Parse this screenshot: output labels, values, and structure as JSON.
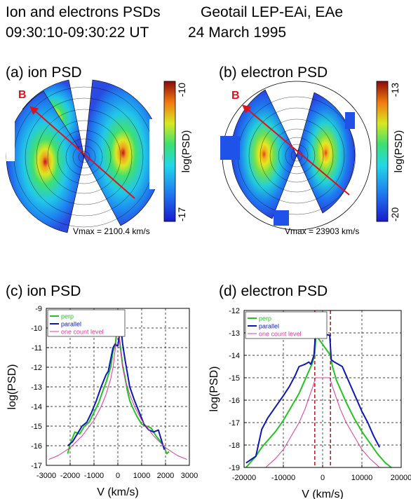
{
  "header": {
    "line1_left": "Ion and electrons PSDs",
    "line1_right": "Geotail LEP-EAi, EAe",
    "line2_left": "09:30:10-09:30:22 UT",
    "line2_right": "24 March 1995"
  },
  "panels": {
    "a": {
      "title": "(a) ion PSD",
      "b_label": "B",
      "vmax": "Vmax = 2100.4 km/s",
      "colorbar_top": "-10",
      "colorbar_bottom": "-17",
      "colorbar_label": "log(PSD)"
    },
    "b": {
      "title": "(b) electron PSD",
      "b_label": "B",
      "vmax": "Vmax = 23903 km/s",
      "colorbar_top": "-13",
      "colorbar_bottom": "-20",
      "colorbar_label": "log(PSD)"
    },
    "c": {
      "title": "(c) ion PSD"
    },
    "d": {
      "title": "(d) electron PSD"
    }
  },
  "colors": {
    "perp": "#22c422",
    "parallel": "#0b18b5",
    "one_count": "#e0389a",
    "b_arrow": "#e0101a",
    "dashed_marker": "#e0101a"
  },
  "chart_data": [
    {
      "id": "c",
      "type": "line",
      "title": "(c) ion PSD",
      "xlabel": "V (km/s)",
      "ylabel": "log(PSD)",
      "xlim": [
        -3000,
        3000
      ],
      "ylim": [
        -17,
        -9
      ],
      "xticks": [
        -3000,
        -2000,
        -1000,
        0,
        1000,
        2000,
        3000
      ],
      "yticks": [
        -17,
        -16,
        -15,
        -14,
        -13,
        -12,
        -11,
        -10,
        -9
      ],
      "grid": true,
      "legend_position": "top-left",
      "series": [
        {
          "name": "perp",
          "color_key": "perp",
          "x": [
            -2100,
            -2000,
            -1800,
            -1600,
            -1400,
            -1200,
            -1000,
            -800,
            -600,
            -500,
            -400,
            -300,
            -200,
            -100,
            -50,
            0,
            50,
            100,
            200,
            300,
            400,
            500,
            600,
            800,
            1000,
            1200,
            1400,
            1600,
            1800,
            1950,
            2050,
            2150
          ],
          "y": [
            -16.4,
            -15.9,
            -15.3,
            -15.4,
            -15.0,
            -14.8,
            -14.3,
            -13.8,
            -13.1,
            -12.8,
            -12.4,
            -12.0,
            -11.2,
            -10.8,
            -10.2,
            -9.9,
            -10.4,
            -10.9,
            -11.9,
            -12.5,
            -13.2,
            -13.7,
            -14.0,
            -14.5,
            -14.9,
            -15.0,
            -15.1,
            -15.5,
            -15.8,
            -16.1,
            -16.4,
            -16.3
          ]
        },
        {
          "name": "parallel",
          "color_key": "parallel",
          "x": [
            -2100,
            -1900,
            -1700,
            -1500,
            -1300,
            -1100,
            -900,
            -700,
            -500,
            -400,
            -300,
            -200,
            -100,
            -50,
            0,
            50,
            100,
            150,
            200,
            300,
            400,
            500,
            700,
            900,
            1100,
            1300,
            1500,
            1700,
            1850,
            1950
          ],
          "y": [
            -16.0,
            -15.8,
            -15.4,
            -15.0,
            -14.8,
            -14.3,
            -13.7,
            -13.0,
            -12.4,
            -12.2,
            -11.6,
            -11.0,
            -10.8,
            -10.9,
            -10.9,
            -10.5,
            -10.1,
            -10.2,
            -10.8,
            -11.6,
            -12.3,
            -13.0,
            -13.7,
            -14.3,
            -14.9,
            -15.2,
            -15.3,
            -15.2,
            -15.8,
            -16.2
          ]
        },
        {
          "name": "one count level",
          "color_key": "one_count",
          "x": [
            -2900,
            -2500,
            -2000,
            -1500,
            -1000,
            -700,
            -500,
            -300,
            -200,
            -100,
            -50,
            0,
            50,
            100,
            200,
            300,
            500,
            700,
            1000,
            1500,
            2000,
            2500,
            2900
          ],
          "y": [
            -16.7,
            -16.5,
            -16.1,
            -15.5,
            -14.7,
            -14.0,
            -13.4,
            -12.6,
            -12.0,
            -11.0,
            -10.3,
            -10.0,
            -10.3,
            -11.0,
            -12.0,
            -12.6,
            -13.4,
            -14.0,
            -14.7,
            -15.5,
            -16.1,
            -16.5,
            -16.7
          ]
        }
      ]
    },
    {
      "id": "d",
      "type": "line",
      "title": "(d) electron PSD",
      "xlabel": "V (km/s)",
      "ylabel": "log(PSD)",
      "xlim": [
        -20000,
        20000
      ],
      "ylim": [
        -19,
        -12
      ],
      "xticks": [
        -20000,
        -10000,
        0,
        10000,
        20000
      ],
      "yticks": [
        -19,
        -18,
        -17,
        -16,
        -15,
        -14,
        -13,
        -12
      ],
      "grid": true,
      "legend_position": "top-left",
      "markers": [
        -2000,
        2000
      ],
      "series": [
        {
          "name": "perp",
          "color_key": "perp",
          "x": [
            -19500,
            -17000,
            -15500,
            -14000,
            -12000,
            -10000,
            -8000,
            -6000,
            -4500,
            -3500,
            -3000,
            -2500,
            -2000,
            -1700,
            2000,
            2500,
            3000,
            3500,
            4500,
            6000,
            8000,
            10000,
            12000,
            14000,
            16000,
            17500
          ],
          "y": [
            -19.0,
            -18.5,
            -18.1,
            -17.8,
            -17.4,
            -16.9,
            -16.3,
            -15.7,
            -15.1,
            -14.7,
            -14.5,
            -14.3,
            -13.9,
            -13.1,
            -14.0,
            -14.5,
            -14.8,
            -15.1,
            -15.5,
            -16.1,
            -16.8,
            -17.4,
            -17.9,
            -18.4,
            -18.8,
            -19.0
          ]
        },
        {
          "name": "parallel",
          "color_key": "parallel",
          "x": [
            -19500,
            -17000,
            -15500,
            -14000,
            -12000,
            -10000,
            -8500,
            -7000,
            -6000,
            -4500,
            -3500,
            -3000,
            -2200,
            -1800,
            1800,
            2200,
            3000,
            4000,
            5000,
            6000,
            7000,
            8500,
            10000,
            11500,
            13000,
            14500
          ],
          "y": [
            -18.8,
            -18.5,
            -17.3,
            -16.8,
            -16.3,
            -15.8,
            -15.4,
            -14.9,
            -14.5,
            -14.4,
            -14.3,
            -14.4,
            -14.0,
            -13.0,
            -13.1,
            -14.2,
            -14.3,
            -14.4,
            -14.5,
            -14.9,
            -15.3,
            -15.9,
            -16.5,
            -17.0,
            -17.6,
            -18.1
          ]
        },
        {
          "name": "one count level",
          "color_key": "one_count",
          "x": [
            -14500,
            -12000,
            -10000,
            -8000,
            -6000,
            -4500,
            -3500,
            -2500,
            -1800,
            1800,
            2500,
            3500,
            4500,
            6000,
            8000,
            10000,
            12000,
            14500
          ],
          "y": [
            -19.0,
            -18.6,
            -18.2,
            -17.6,
            -17.0,
            -16.4,
            -15.9,
            -15.4,
            -15.0,
            -15.0,
            -15.4,
            -15.9,
            -16.4,
            -17.0,
            -17.6,
            -18.2,
            -18.6,
            -19.0
          ]
        }
      ]
    }
  ]
}
